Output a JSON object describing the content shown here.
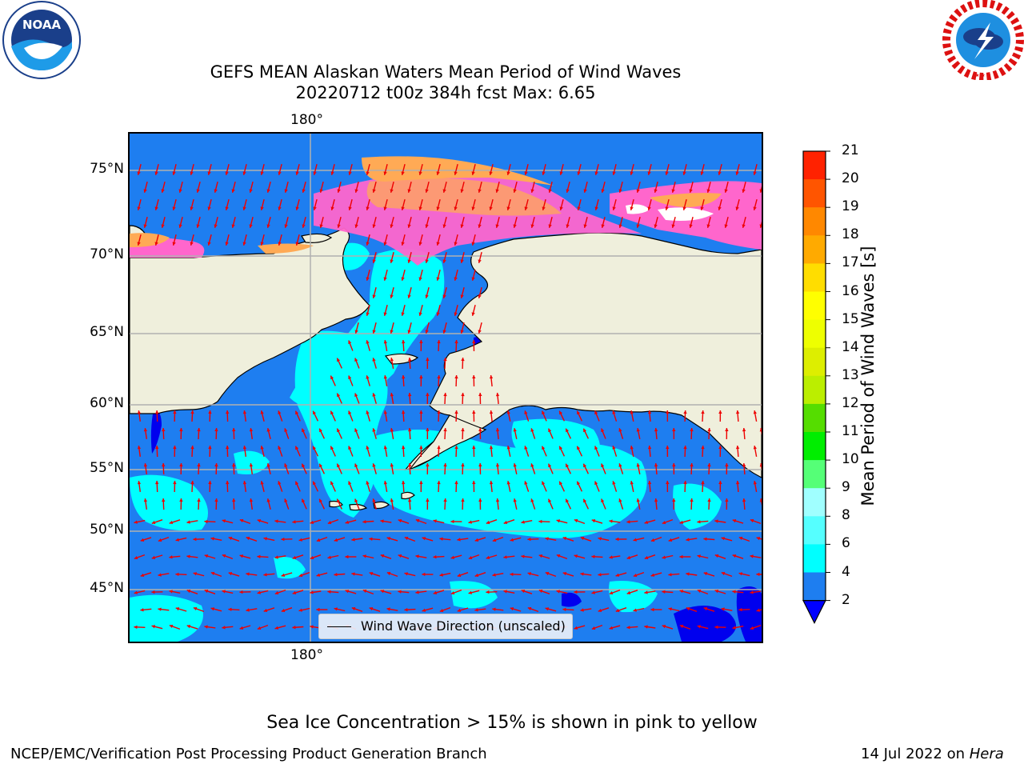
{
  "header": {
    "title_line1": "GEFS MEAN Alaskan Waters Mean Period of Wind Waves",
    "title_line2": "20220712 t00z 384h fcst   Max: 6.65"
  },
  "logos": {
    "left": {
      "name": "NOAA",
      "ring_text": "NATIONAL OCEANIC AND ATMOSPHERIC ADMINISTRATION · U.S. DEPARTMENT OF COMMERCE"
    },
    "right": {
      "ring_text": "NATIONAL WEATHER SERVICE"
    }
  },
  "map": {
    "lon_label_top": "180°",
    "lon_label_bottom": "180°",
    "lat_labels": [
      "75°N",
      "70°N",
      "65°N",
      "60°N",
      "55°N",
      "50°N",
      "45°N"
    ],
    "legend_label": "Wind Wave Direction (unscaled)",
    "colors": {
      "ocean_low": "#1e7ef0",
      "ocean_mid": "#00ffff",
      "land": "#efefdc",
      "ice_pink": "#ff66cc",
      "ice_orange": "#ffaa55",
      "arrow": "#ee0000"
    }
  },
  "colorbar": {
    "label": "Mean Period of Wind Waves [s]",
    "ticks": [
      "21",
      "20",
      "19",
      "18",
      "17",
      "16",
      "15",
      "14",
      "13",
      "12",
      "11",
      "10",
      "9",
      "8",
      "6",
      "4",
      "2"
    ],
    "levels": [
      2,
      4,
      6,
      8,
      9,
      10,
      11,
      12,
      13,
      14,
      15,
      16,
      17,
      18,
      19,
      20,
      21
    ],
    "colors": [
      "#1e7ef0",
      "#00ffff",
      "#55ffff",
      "#a0ffff",
      "#55ff77",
      "#00ee00",
      "#55dd00",
      "#bbee00",
      "#ddee00",
      "#eeff00",
      "#ffff00",
      "#ffdd00",
      "#ffaa00",
      "#ff8800",
      "#ff5500",
      "#ff2200"
    ],
    "under_color": "#0000ff",
    "over_color": "#ff0000"
  },
  "footer": {
    "note": "Sea Ice Concentration > 15% is shown in pink to yellow",
    "credit": "NCEP/EMC/Verification Post Processing Product Generation Branch",
    "date_prefix": "14 Jul 2022 on ",
    "machine": "Hera"
  }
}
